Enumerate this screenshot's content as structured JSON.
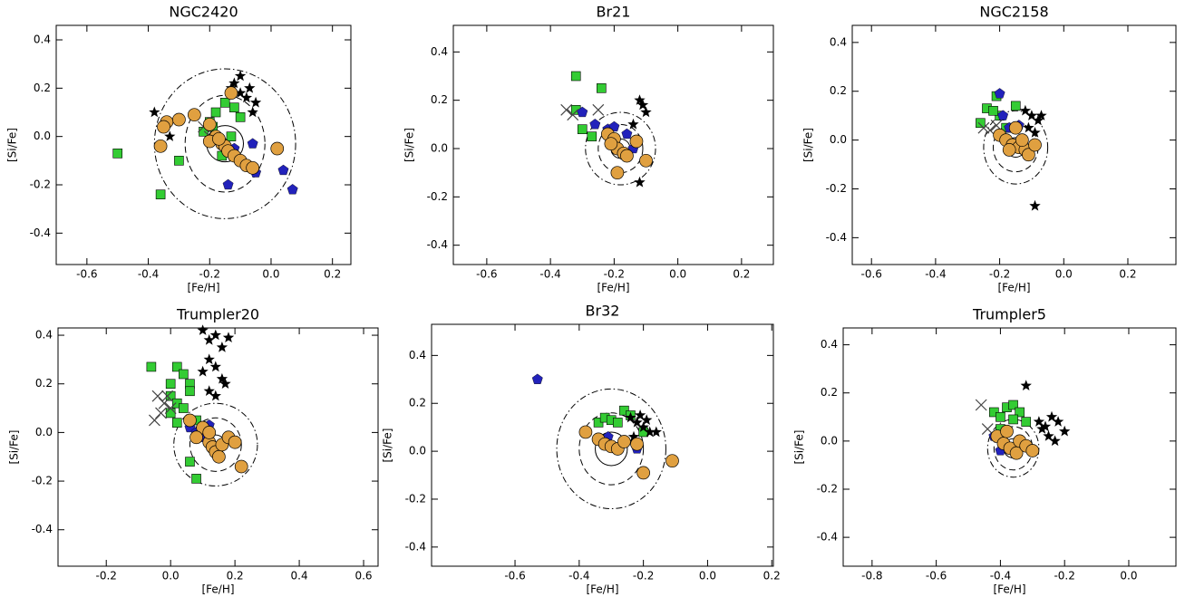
{
  "chart_data": [
    {
      "type": "scatter",
      "title": "NGC2420",
      "xlabel": "[Fe/H]",
      "ylabel": "[Si/Fe]",
      "xlim": [
        -0.7,
        0.26
      ],
      "ylim": [
        -0.53,
        0.46
      ],
      "xticks": [
        -0.6,
        -0.4,
        -0.2,
        {
          "value": 0,
          "label": "0.0"
        },
        0.2
      ],
      "yticks": [
        -0.4,
        -0.2,
        {
          "value": 0,
          "label": "0.0"
        },
        0.2,
        0.4
      ],
      "rings": [
        {
          "x": -0.15,
          "y": -0.03,
          "rx": 0.06,
          "ry": 0.075,
          "style": "solid"
        },
        {
          "x": -0.15,
          "y": -0.03,
          "rx": 0.13,
          "ry": 0.2,
          "style": "dashed"
        },
        {
          "x": -0.15,
          "y": -0.03,
          "rx": 0.23,
          "ry": 0.31,
          "style": "dashdot"
        }
      ],
      "series": [
        {
          "marker": "square",
          "color": "#33cc33",
          "x": [
            -0.5,
            -0.36,
            -0.3,
            -0.22,
            -0.2,
            -0.18,
            -0.15,
            -0.12,
            -0.1,
            -0.16,
            -0.13,
            -0.19
          ],
          "values": [
            -0.07,
            -0.24,
            -0.1,
            0.02,
            0.06,
            0.1,
            0.14,
            0.12,
            0.08,
            -0.08,
            0.0,
            0.04
          ]
        },
        {
          "marker": "pentagon",
          "color": "#2222bb",
          "x": [
            -0.12,
            -0.1,
            -0.08,
            -0.05,
            0.04,
            0.07,
            -0.14,
            -0.06
          ],
          "values": [
            -0.05,
            -0.1,
            -0.12,
            -0.15,
            -0.14,
            -0.22,
            -0.2,
            -0.03
          ]
        },
        {
          "marker": "star",
          "color": "#000000",
          "x": [
            -0.38,
            -0.33,
            -0.12,
            -0.1,
            -0.08,
            -0.07,
            -0.05,
            -0.1,
            -0.13,
            -0.06
          ],
          "values": [
            0.1,
            0.0,
            0.22,
            0.18,
            0.16,
            0.2,
            0.14,
            0.25,
            0.2,
            0.1
          ]
        },
        {
          "marker": "cross",
          "color": "#444444",
          "x": [
            -0.22,
            -0.2
          ],
          "values": [
            0.04,
            0.0
          ]
        },
        {
          "marker": "circle",
          "color": "#e0a040",
          "x": [
            -0.36,
            -0.34,
            -0.3,
            -0.25,
            -0.2,
            -0.18,
            -0.16,
            -0.15,
            -0.14,
            -0.12,
            -0.1,
            -0.08,
            -0.06,
            0.02,
            -0.35,
            -0.2,
            -0.13,
            -0.17
          ],
          "values": [
            -0.04,
            0.06,
            0.07,
            0.09,
            0.05,
            0.0,
            -0.03,
            -0.04,
            -0.06,
            -0.08,
            -0.1,
            -0.12,
            -0.13,
            -0.05,
            0.04,
            -0.02,
            0.18,
            -0.01
          ]
        }
      ]
    },
    {
      "type": "scatter",
      "title": "Br21",
      "xlabel": "[Fe/H]",
      "ylabel": "[Si/Fe]",
      "xlim": [
        -0.705,
        0.3
      ],
      "ylim": [
        -0.48,
        0.51
      ],
      "xticks": [
        -0.6,
        -0.4,
        -0.2,
        {
          "value": 0,
          "label": "0.0"
        },
        0.2
      ],
      "yticks": [
        -0.4,
        -0.2,
        {
          "value": 0,
          "label": "0.0"
        },
        0.2,
        0.4
      ],
      "rings": [
        {
          "x": -0.18,
          "y": 0.0,
          "rx": 0.03,
          "ry": 0.04,
          "style": "solid"
        },
        {
          "x": -0.18,
          "y": 0.0,
          "rx": 0.07,
          "ry": 0.1,
          "style": "dashed"
        },
        {
          "x": -0.18,
          "y": 0.0,
          "rx": 0.11,
          "ry": 0.15,
          "style": "dashdot"
        }
      ],
      "series": [
        {
          "marker": "square",
          "color": "#33cc33",
          "x": [
            -0.32,
            -0.32,
            -0.3,
            -0.24,
            -0.27
          ],
          "values": [
            0.3,
            0.16,
            0.08,
            0.25,
            0.05
          ]
        },
        {
          "marker": "pentagon",
          "color": "#2222bb",
          "x": [
            -0.26,
            -0.22,
            -0.2,
            -0.16,
            -0.14,
            -0.3
          ],
          "values": [
            0.1,
            0.08,
            0.09,
            0.06,
            0.0,
            0.15
          ]
        },
        {
          "marker": "star",
          "color": "#000000",
          "x": [
            -0.12,
            -0.11,
            -0.1,
            -0.14,
            -0.12
          ],
          "values": [
            0.2,
            0.18,
            0.15,
            0.1,
            -0.14
          ]
        },
        {
          "marker": "cross",
          "color": "#444444",
          "x": [
            -0.35,
            -0.33,
            -0.25
          ],
          "values": [
            0.16,
            0.14,
            0.16
          ]
        },
        {
          "marker": "circle",
          "color": "#e0a040",
          "x": [
            -0.22,
            -0.2,
            -0.19,
            -0.17,
            -0.16,
            -0.19,
            -0.1,
            -0.13,
            -0.21
          ],
          "values": [
            0.06,
            0.04,
            0.0,
            -0.02,
            -0.03,
            -0.1,
            -0.05,
            0.03,
            0.02
          ]
        }
      ]
    },
    {
      "type": "scatter",
      "title": "NGC2158",
      "xlabel": "[Fe/H]",
      "ylabel": "[Si/Fe]",
      "xlim": [
        -0.66,
        0.35
      ],
      "ylim": [
        -0.51,
        0.47
      ],
      "xticks": [
        -0.6,
        -0.4,
        -0.2,
        {
          "value": 0,
          "label": "0.0"
        },
        0.2
      ],
      "yticks": [
        -0.4,
        -0.2,
        {
          "value": 0,
          "label": "0.0"
        },
        0.2,
        0.4
      ],
      "rings": [
        {
          "x": -0.15,
          "y": -0.03,
          "rx": 0.03,
          "ry": 0.04,
          "style": "solid"
        },
        {
          "x": -0.15,
          "y": -0.03,
          "rx": 0.07,
          "ry": 0.1,
          "style": "dashed"
        },
        {
          "x": -0.15,
          "y": -0.03,
          "rx": 0.1,
          "ry": 0.15,
          "style": "dashdot"
        }
      ],
      "series": [
        {
          "marker": "square",
          "color": "#33cc33",
          "x": [
            -0.26,
            -0.24,
            -0.21,
            -0.2,
            -0.22,
            -0.15,
            -0.18
          ],
          "values": [
            0.07,
            0.13,
            0.18,
            0.1,
            0.12,
            0.14,
            0.05
          ]
        },
        {
          "marker": "pentagon",
          "color": "#2222bb",
          "x": [
            -0.2,
            -0.17,
            -0.14,
            -0.19
          ],
          "values": [
            0.19,
            0.05,
            0.06,
            0.1
          ]
        },
        {
          "marker": "star",
          "color": "#000000",
          "x": [
            -0.12,
            -0.1,
            -0.08,
            -0.09,
            -0.11,
            -0.07,
            -0.09
          ],
          "values": [
            0.12,
            0.1,
            0.08,
            0.03,
            0.05,
            0.1,
            -0.27
          ]
        },
        {
          "marker": "cross",
          "color": "#444444",
          "x": [
            -0.25,
            -0.23,
            -0.21
          ],
          "values": [
            0.05,
            0.04,
            0.06
          ]
        },
        {
          "marker": "circle",
          "color": "#e0a040",
          "x": [
            -0.2,
            -0.18,
            -0.16,
            -0.15,
            -0.14,
            -0.12,
            -0.11,
            -0.17,
            -0.13,
            -0.09
          ],
          "values": [
            0.02,
            0.0,
            -0.02,
            0.05,
            -0.03,
            -0.04,
            -0.06,
            -0.04,
            0.0,
            -0.02
          ]
        }
      ]
    },
    {
      "type": "scatter",
      "title": "Trumpler20",
      "xlabel": "[Fe/H]",
      "ylabel": "[Si/Fe]",
      "xlim": [
        -0.35,
        0.645
      ],
      "ylim": [
        -0.55,
        0.43
      ],
      "xticks": [
        -0.2,
        {
          "value": 0,
          "label": "0.0"
        },
        0.2,
        0.4,
        0.6
      ],
      "yticks": [
        -0.4,
        -0.2,
        {
          "value": 0,
          "label": "0.0"
        },
        0.2,
        0.4
      ],
      "rings": [
        {
          "x": 0.14,
          "y": -0.05,
          "rx": 0.03,
          "ry": 0.04,
          "style": "solid"
        },
        {
          "x": 0.14,
          "y": -0.05,
          "rx": 0.08,
          "ry": 0.11,
          "style": "dashed"
        },
        {
          "x": 0.14,
          "y": -0.05,
          "rx": 0.13,
          "ry": 0.17,
          "style": "dashdot"
        }
      ],
      "series": [
        {
          "marker": "square",
          "color": "#33cc33",
          "x": [
            -0.06,
            0.0,
            0.02,
            0.04,
            0.06,
            0.0,
            0.02,
            0.04,
            0.08,
            0.06,
            0.02,
            0.0,
            0.08,
            0.06
          ],
          "values": [
            0.27,
            0.2,
            0.27,
            0.24,
            0.2,
            0.15,
            0.12,
            0.1,
            0.05,
            0.17,
            0.04,
            0.08,
            -0.19,
            -0.12
          ]
        },
        {
          "marker": "pentagon",
          "color": "#2222bb",
          "x": [
            0.06,
            0.08,
            0.1,
            0.12
          ],
          "values": [
            0.02,
            0.0,
            -0.02,
            0.03
          ]
        },
        {
          "marker": "star",
          "color": "#000000",
          "x": [
            0.1,
            0.12,
            0.14,
            0.16,
            0.18,
            0.1,
            0.12,
            0.14,
            0.16,
            0.12,
            0.14,
            0.17
          ],
          "values": [
            0.42,
            0.38,
            0.4,
            0.35,
            0.39,
            0.25,
            0.3,
            0.27,
            0.22,
            0.17,
            0.15,
            0.2
          ]
        },
        {
          "marker": "cross",
          "color": "#444444",
          "x": [
            -0.04,
            -0.02,
            -0.03,
            0.0,
            -0.05,
            -0.01
          ],
          "values": [
            0.15,
            0.12,
            0.08,
            0.1,
            0.05,
            0.15
          ]
        },
        {
          "marker": "circle",
          "color": "#e0a040",
          "x": [
            0.06,
            0.1,
            0.12,
            0.13,
            0.14,
            0.15,
            0.16,
            0.18,
            0.2,
            0.22,
            0.12,
            0.08
          ],
          "values": [
            0.05,
            0.02,
            -0.04,
            -0.06,
            -0.08,
            -0.1,
            -0.05,
            -0.02,
            -0.04,
            -0.14,
            0.0,
            -0.02
          ]
        }
      ]
    },
    {
      "type": "scatter",
      "title": "Br32",
      "xlabel": "[Fe/H]",
      "ylabel": "[Si/Fe]",
      "xlim": [
        -0.86,
        0.205
      ],
      "ylim": [
        -0.48,
        0.53
      ],
      "xticks": [
        -0.6,
        -0.4,
        -0.2,
        {
          "value": 0,
          "label": "0.0"
        },
        0.2
      ],
      "yticks": [
        -0.4,
        -0.2,
        {
          "value": 0,
          "label": "0.0"
        },
        0.2,
        0.4
      ],
      "rings": [
        {
          "x": -0.3,
          "y": 0.01,
          "rx": 0.05,
          "ry": 0.07,
          "style": "solid"
        },
        {
          "x": -0.3,
          "y": 0.01,
          "rx": 0.1,
          "ry": 0.15,
          "style": "dashed"
        },
        {
          "x": -0.3,
          "y": 0.01,
          "rx": 0.17,
          "ry": 0.25,
          "style": "dashdot"
        }
      ],
      "series": [
        {
          "marker": "square",
          "color": "#33cc33",
          "x": [
            -0.34,
            -0.32,
            -0.3,
            -0.28,
            -0.26,
            -0.24,
            -0.2
          ],
          "values": [
            0.12,
            0.14,
            0.13,
            0.12,
            0.17,
            0.15,
            0.08
          ]
        },
        {
          "marker": "pentagon",
          "color": "#2222bb",
          "x": [
            -0.53,
            -0.31,
            -0.22
          ],
          "values": [
            0.3,
            0.06,
            0.01
          ]
        },
        {
          "marker": "star",
          "color": "#000000",
          "x": [
            -0.24,
            -0.22,
            -0.2,
            -0.18,
            -0.16,
            -0.23,
            -0.19,
            -0.21
          ],
          "values": [
            0.14,
            0.12,
            0.1,
            0.08,
            0.08,
            0.06,
            0.13,
            0.15
          ]
        },
        {
          "marker": "circle",
          "color": "#e0a040",
          "x": [
            -0.38,
            -0.34,
            -0.32,
            -0.3,
            -0.28,
            -0.26,
            -0.22,
            -0.2,
            -0.11
          ],
          "values": [
            0.08,
            0.05,
            0.03,
            0.02,
            0.01,
            0.04,
            0.03,
            -0.09,
            -0.04
          ]
        }
      ]
    },
    {
      "type": "scatter",
      "title": "Trumpler5",
      "xlabel": "[Fe/H]",
      "ylabel": "[Si/Fe]",
      "xlim": [
        -0.89,
        0.147
      ],
      "ylim": [
        -0.52,
        0.47
      ],
      "xticks": [
        -0.8,
        -0.6,
        -0.4,
        -0.2,
        {
          "value": 0,
          "label": "0.0"
        }
      ],
      "yticks": [
        -0.4,
        -0.2,
        {
          "value": 0,
          "label": "0.0"
        },
        0.2,
        0.4
      ],
      "rings": [
        {
          "x": -0.36,
          "y": -0.03,
          "rx": 0.03,
          "ry": 0.04,
          "style": "solid"
        },
        {
          "x": -0.36,
          "y": -0.03,
          "rx": 0.06,
          "ry": 0.09,
          "style": "dashed"
        },
        {
          "x": -0.36,
          "y": -0.03,
          "rx": 0.08,
          "ry": 0.12,
          "style": "dashdot"
        }
      ],
      "series": [
        {
          "marker": "square",
          "color": "#33cc33",
          "x": [
            -0.42,
            -0.4,
            -0.38,
            -0.36,
            -0.34,
            -0.32,
            -0.4,
            -0.36
          ],
          "values": [
            0.12,
            0.1,
            0.14,
            0.15,
            0.12,
            0.08,
            0.05,
            0.09
          ]
        },
        {
          "marker": "pentagon",
          "color": "#2222bb",
          "x": [
            -0.4,
            -0.42
          ],
          "values": [
            -0.04,
            0.02
          ]
        },
        {
          "marker": "star",
          "color": "#000000",
          "x": [
            -0.32,
            -0.28,
            -0.26,
            -0.24,
            -0.22,
            -0.2,
            -0.25,
            -0.23,
            -0.27
          ],
          "values": [
            0.23,
            0.08,
            0.06,
            0.1,
            0.08,
            0.04,
            0.02,
            0.0,
            0.05
          ]
        },
        {
          "marker": "cross",
          "color": "#444444",
          "x": [
            -0.46,
            -0.44
          ],
          "values": [
            0.15,
            0.05
          ]
        },
        {
          "marker": "circle",
          "color": "#e0a040",
          "x": [
            -0.41,
            -0.39,
            -0.37,
            -0.35,
            -0.34,
            -0.32,
            -0.38,
            -0.3
          ],
          "values": [
            0.02,
            -0.01,
            -0.03,
            -0.05,
            0.0,
            -0.02,
            0.04,
            -0.04
          ]
        }
      ]
    }
  ]
}
